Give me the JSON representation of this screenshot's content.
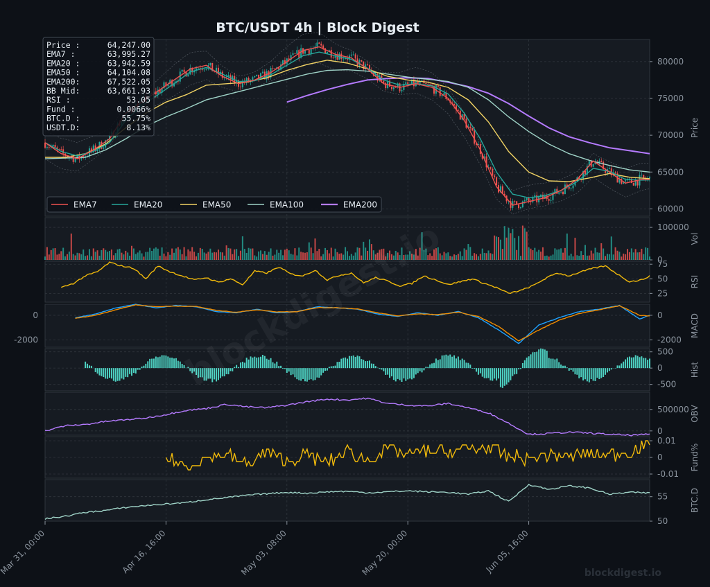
{
  "title": "BTC/USDT  4h  |  Block Digest",
  "watermark": "blockdigest.io",
  "footer_brand": "blockdigest.io",
  "colors": {
    "background": "#0d1117",
    "panel": "#161b22",
    "grid": "#30363d",
    "text": "#8b949e",
    "title": "#e6edf3",
    "ema7": "#ef5350",
    "ema20": "#26a69a",
    "ema50": "#f0d264",
    "ema100": "#9fd3c7",
    "ema200": "#b57bff",
    "up": "#26a69a",
    "down": "#ef5350",
    "rsi": "#f0b90b",
    "macd": "#1fa2ff",
    "signal": "#f08c00",
    "hist": "#4dd0c1",
    "obv": "#b57bff",
    "fund": "#f0b90b",
    "btcd": "#9fd3c7"
  },
  "info_box": [
    {
      "label": "Price :",
      "value": "64,247.00"
    },
    {
      "label": "EMA7  :",
      "value": "63,995.27"
    },
    {
      "label": "EMA20 :",
      "value": "63,942.59"
    },
    {
      "label": "EMA50 :",
      "value": "64,104.08"
    },
    {
      "label": "EMA200:",
      "value": "67,522.05"
    },
    {
      "label": "BB Mid:",
      "value": "63,661.93"
    },
    {
      "label": "RSI   :",
      "value": "53.05"
    },
    {
      "label": "Fund  :",
      "value": "0.0066%"
    },
    {
      "label": "BTC.D :",
      "value": "55.75%"
    },
    {
      "label": "USDT.D:",
      "value": "8.13%"
    }
  ],
  "legend": [
    "EMA7",
    "EMA20",
    "EMA50",
    "EMA100",
    "EMA200"
  ],
  "x_ticks": [
    "Mar 31, 00:00",
    "Apr 16, 16:00",
    "May 03, 08:00",
    "May 20, 00:00",
    "Jun 05, 16:00"
  ],
  "chart_data": [
    {
      "type": "line",
      "panel": "price",
      "ylabel": "Price",
      "ylim": [
        59000,
        83000
      ],
      "yticks": [
        60000,
        65000,
        70000,
        75000,
        80000
      ],
      "x_index_range": [
        0,
        300
      ],
      "series": [
        {
          "name": "EMA7",
          "x": [
            0,
            8,
            16,
            24,
            32,
            40,
            48,
            56,
            64,
            72,
            80,
            88,
            96,
            104,
            112,
            120,
            128,
            136,
            144,
            152,
            160,
            168,
            176,
            184,
            192,
            200,
            208,
            216,
            224,
            232,
            240,
            248,
            256,
            264,
            272,
            280,
            288,
            296,
            300
          ],
          "values": [
            69000,
            67500,
            66800,
            68000,
            69500,
            73000,
            74500,
            76000,
            77500,
            79000,
            79500,
            78000,
            77000,
            77500,
            78500,
            80000,
            81500,
            82000,
            81000,
            80500,
            79000,
            77000,
            76500,
            77000,
            76500,
            75000,
            72000,
            68000,
            63000,
            60500,
            61000,
            61500,
            62500,
            64000,
            66500,
            65000,
            63500,
            64000,
            64000
          ]
        },
        {
          "name": "EMA20",
          "x": [
            0,
            8,
            16,
            24,
            32,
            40,
            48,
            56,
            64,
            72,
            80,
            88,
            96,
            104,
            112,
            120,
            128,
            136,
            144,
            152,
            160,
            168,
            176,
            184,
            192,
            200,
            208,
            216,
            224,
            232,
            240,
            248,
            256,
            264,
            272,
            280,
            288,
            296,
            300
          ],
          "values": [
            69000,
            67800,
            67200,
            67800,
            69000,
            72000,
            74000,
            75500,
            77000,
            78600,
            79200,
            78300,
            77300,
            77400,
            78200,
            79500,
            80800,
            81300,
            80800,
            80300,
            79100,
            77500,
            76800,
            77000,
            76700,
            75600,
            73000,
            69500,
            65000,
            62000,
            61500,
            61800,
            62500,
            63700,
            65500,
            65100,
            64000,
            63900,
            63940
          ]
        },
        {
          "name": "EMA50",
          "x": [
            0,
            10,
            20,
            30,
            40,
            50,
            60,
            70,
            80,
            90,
            100,
            110,
            120,
            130,
            140,
            150,
            160,
            170,
            180,
            190,
            200,
            210,
            220,
            230,
            240,
            250,
            260,
            270,
            280,
            290,
            300
          ],
          "values": [
            67000,
            67000,
            67500,
            68800,
            71000,
            73000,
            74500,
            75500,
            76800,
            77000,
            77200,
            77800,
            78800,
            79600,
            80200,
            79800,
            79000,
            78000,
            77500,
            77200,
            76500,
            74800,
            71800,
            67800,
            65000,
            63800,
            63700,
            64200,
            64800,
            64300,
            64100
          ]
        },
        {
          "name": "EMA100",
          "x": [
            0,
            10,
            20,
            30,
            40,
            50,
            60,
            70,
            80,
            90,
            100,
            110,
            120,
            130,
            140,
            150,
            160,
            170,
            180,
            190,
            200,
            210,
            220,
            230,
            240,
            250,
            260,
            270,
            280,
            290,
            300
          ],
          "values": [
            66800,
            66900,
            67000,
            68000,
            69500,
            71200,
            72500,
            73600,
            74800,
            75500,
            76200,
            76900,
            77600,
            78300,
            78800,
            78900,
            78700,
            78300,
            77900,
            77600,
            77300,
            76500,
            74800,
            72500,
            70500,
            68800,
            67500,
            66600,
            65900,
            65300,
            65000
          ]
        },
        {
          "name": "EMA200",
          "x": [
            120,
            130,
            140,
            150,
            160,
            170,
            180,
            190,
            200,
            210,
            220,
            230,
            240,
            250,
            260,
            270,
            280,
            290,
            300
          ],
          "values": [
            74500,
            75400,
            76200,
            76900,
            77500,
            77700,
            77800,
            77700,
            77200,
            76600,
            75700,
            74300,
            72600,
            71000,
            69800,
            69000,
            68300,
            67900,
            67500
          ]
        }
      ]
    },
    {
      "type": "bar",
      "panel": "volume",
      "ylabel": "Vol",
      "ylim": [
        0,
        130000
      ],
      "yticks": [
        0,
        100000
      ]
    },
    {
      "type": "line",
      "panel": "rsi",
      "ylabel": "RSI",
      "ylim": [
        10,
        80
      ],
      "yticks": [
        25,
        50,
        75
      ],
      "series": [
        {
          "name": "RSI",
          "x": [
            8,
            14,
            20,
            26,
            32,
            38,
            44,
            50,
            56,
            62,
            68,
            74,
            80,
            86,
            92,
            98,
            104,
            110,
            116,
            122,
            128,
            134,
            140,
            146,
            152,
            158,
            164,
            170,
            176,
            182,
            188,
            194,
            200,
            206,
            212,
            218,
            224,
            230,
            236,
            242,
            248,
            254,
            260,
            266,
            272,
            278,
            284,
            290,
            296,
            300
          ],
          "values": [
            35,
            42,
            55,
            62,
            78,
            72,
            68,
            50,
            72,
            62,
            55,
            48,
            52,
            44,
            50,
            40,
            63,
            60,
            70,
            58,
            55,
            65,
            48,
            56,
            60,
            43,
            52,
            46,
            38,
            42,
            55,
            48,
            40,
            45,
            50,
            42,
            35,
            25,
            30,
            38,
            50,
            60,
            55,
            62,
            68,
            72,
            58,
            45,
            48,
            55
          ]
        }
      ]
    },
    {
      "type": "line",
      "panel": "macd",
      "ylabel": "MACD",
      "ylim": [
        -2600,
        900
      ],
      "yticks": [
        -2000,
        0
      ],
      "series": [
        {
          "name": "MACD",
          "x": [
            15,
            25,
            35,
            45,
            55,
            65,
            75,
            85,
            95,
            105,
            115,
            125,
            135,
            145,
            155,
            165,
            175,
            185,
            195,
            205,
            215,
            225,
            235,
            245,
            255,
            265,
            275,
            285,
            295,
            300
          ],
          "values": [
            -200,
            100,
            600,
            900,
            600,
            800,
            700,
            300,
            200,
            500,
            200,
            300,
            700,
            600,
            500,
            100,
            -100,
            200,
            0,
            300,
            -200,
            -1200,
            -2300,
            -800,
            -200,
            300,
            500,
            800,
            -300,
            0
          ]
        },
        {
          "name": "Signal",
          "x": [
            15,
            25,
            35,
            45,
            55,
            65,
            75,
            85,
            95,
            105,
            115,
            125,
            135,
            145,
            155,
            165,
            175,
            185,
            195,
            205,
            215,
            225,
            235,
            245,
            255,
            265,
            275,
            285,
            295,
            300
          ],
          "values": [
            -250,
            0,
            450,
            850,
            700,
            750,
            720,
            400,
            250,
            450,
            280,
            300,
            620,
            620,
            520,
            200,
            -50,
            120,
            50,
            250,
            -100,
            -900,
            -2100,
            -1200,
            -400,
            150,
            450,
            780,
            0,
            -50
          ]
        }
      ]
    },
    {
      "type": "bar",
      "panel": "hist",
      "ylabel": "Hist",
      "ylim": [
        -700,
        600
      ],
      "yticks": [
        -500,
        0,
        500
      ]
    },
    {
      "type": "line",
      "panel": "obv",
      "ylabel": "OBV",
      "ylim": [
        -100000,
        900000
      ],
      "yticks": [
        0,
        500000
      ],
      "series": [
        {
          "name": "OBV",
          "x": [
            0,
            10,
            20,
            30,
            40,
            50,
            60,
            70,
            80,
            90,
            100,
            110,
            120,
            130,
            140,
            150,
            160,
            170,
            180,
            190,
            200,
            210,
            220,
            230,
            240,
            250,
            260,
            270,
            280,
            290,
            300
          ],
          "values": [
            0,
            120000,
            150000,
            220000,
            260000,
            300000,
            380000,
            480000,
            520000,
            620000,
            560000,
            540000,
            600000,
            680000,
            740000,
            720000,
            760000,
            640000,
            600000,
            580000,
            640000,
            540000,
            420000,
            180000,
            -80000,
            -60000,
            -30000,
            -50000,
            -80000,
            -100000,
            -80000
          ]
        }
      ]
    },
    {
      "type": "line",
      "panel": "fund",
      "ylabel": "Fund%",
      "ylim": [
        -0.0125,
        0.0125
      ],
      "yticks": [
        -0.01,
        0.0,
        0.01
      ],
      "series": [
        {
          "name": "Funding",
          "x": [
            60,
            70,
            80,
            90,
            100,
            110,
            120,
            130,
            140,
            150,
            160,
            170,
            180,
            190,
            200,
            210,
            220,
            230,
            240,
            250,
            260,
            270,
            280,
            290,
            300
          ],
          "values": [
            0.0,
            -0.006,
            0.0,
            0.002,
            -0.004,
            0.003,
            -0.003,
            0.002,
            -0.004,
            0.004,
            -0.002,
            0.005,
            0.002,
            0.004,
            0.003,
            0.006,
            0.005,
            0.001,
            -0.001,
            0.002,
            0.0,
            0.003,
            0.001,
            0.004,
            0.0066
          ]
        }
      ]
    },
    {
      "type": "line",
      "panel": "btcd",
      "ylabel": "BTC.D",
      "ylim": [
        50,
        58.5
      ],
      "yticks": [
        50,
        55
      ],
      "series": [
        {
          "name": "BTC.D",
          "x": [
            0,
            10,
            20,
            30,
            40,
            50,
            60,
            70,
            80,
            90,
            100,
            110,
            120,
            130,
            140,
            150,
            160,
            170,
            180,
            190,
            200,
            210,
            220,
            230,
            240,
            250,
            260,
            270,
            280,
            290,
            300
          ],
          "values": [
            50.5,
            51.0,
            51.8,
            52.2,
            52.8,
            53.2,
            53.5,
            53.8,
            54.4,
            54.8,
            55.3,
            55.6,
            55.9,
            55.7,
            56.0,
            56.1,
            55.8,
            56.0,
            56.2,
            56.0,
            55.9,
            55.5,
            56.2,
            54.0,
            57.5,
            56.5,
            57.2,
            56.8,
            55.5,
            55.9,
            55.75
          ]
        }
      ]
    }
  ]
}
